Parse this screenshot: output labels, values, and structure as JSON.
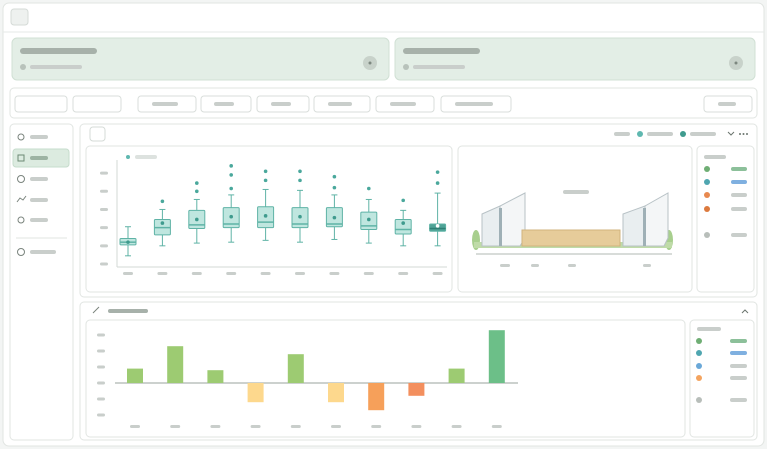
{
  "chart_data": [
    {
      "type": "box",
      "color": "#bfe6df",
      "edge": "#5fb3a6",
      "highlight_color": "#4fa397",
      "categories": [
        null,
        null,
        null,
        null,
        null,
        null,
        null,
        null,
        null,
        null
      ],
      "low": [
        9,
        20,
        23,
        24,
        26,
        24,
        27,
        23,
        20,
        20
      ],
      "q1": [
        21,
        32,
        39,
        40,
        40,
        40,
        41,
        38,
        33,
        36
      ],
      "median": [
        24,
        40,
        43,
        44,
        46,
        44,
        44,
        42,
        38,
        39
      ],
      "q3": [
        28,
        49,
        59,
        62,
        63,
        62,
        62,
        57,
        49,
        44
      ],
      "high": [
        41,
        60,
        71,
        76,
        82,
        81,
        76,
        71,
        59,
        78
      ],
      "means": [
        24,
        45,
        49,
        52,
        53,
        52,
        51,
        49,
        45,
        42
      ],
      "outliers": [
        [],
        [
          69
        ],
        [
          80,
          89
        ],
        [
          83,
          98,
          108
        ],
        [
          92,
          102
        ],
        [
          92,
          102
        ],
        [
          84,
          96
        ],
        [
          83
        ],
        [
          70
        ],
        [
          89,
          101
        ]
      ],
      "ylim": [
        0,
        110
      ],
      "yticks": [
        0,
        20,
        40,
        60,
        80,
        100
      ]
    },
    {
      "type": "bar",
      "categories": [
        null,
        null,
        null,
        null,
        null,
        null,
        null,
        null,
        null,
        null
      ],
      "values": [
        9,
        23,
        8,
        -12,
        18,
        -12,
        -17,
        -8,
        9,
        33
      ],
      "colors": [
        "#9dcb72",
        "#9dcb72",
        "#9dcb72",
        "#fdd88d",
        "#9dcb72",
        "#fdd88d",
        "#f6a05a",
        "#f38f5e",
        "#9dcb72",
        "#6cbf88"
      ],
      "ylim": [
        -25,
        35
      ],
      "yticks": [
        -20,
        -10,
        0,
        10,
        20,
        30
      ]
    }
  ]
}
